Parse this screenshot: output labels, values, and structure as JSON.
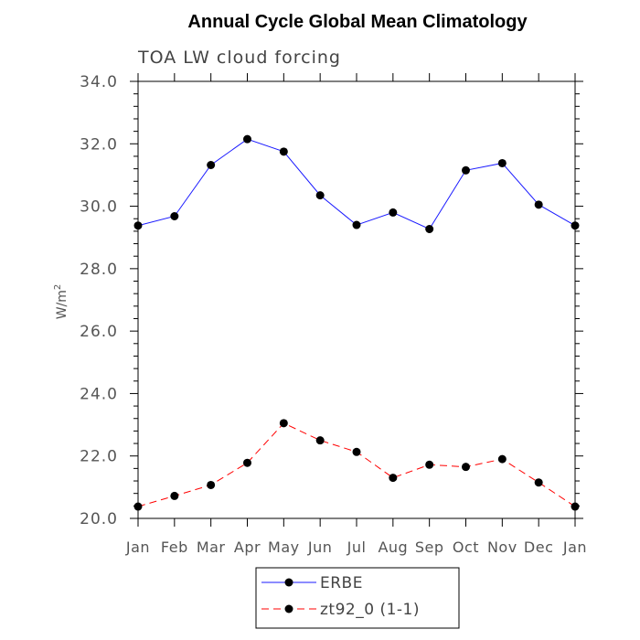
{
  "chart_data": {
    "type": "line",
    "title": "Annual Cycle Global Mean Climatology",
    "subtitle": "TOA LW cloud forcing",
    "xlabel": "",
    "ylabel": "W/m",
    "ylabel_sup": "2",
    "categories": [
      "Jan",
      "Feb",
      "Mar",
      "Apr",
      "May",
      "Jun",
      "Jul",
      "Aug",
      "Sep",
      "Oct",
      "Nov",
      "Dec",
      "Jan"
    ],
    "ylim": [
      20.0,
      34.0
    ],
    "yticks": [
      "20.0",
      "22.0",
      "24.0",
      "26.0",
      "28.0",
      "30.0",
      "32.0",
      "34.0"
    ],
    "legend_position": "bottom-center",
    "series": [
      {
        "name": "ERBE",
        "color": "#1a1aff",
        "dash": "solid",
        "values": [
          29.38,
          29.68,
          31.32,
          32.15,
          31.75,
          30.35,
          29.4,
          29.8,
          29.27,
          31.15,
          31.38,
          30.05,
          29.38
        ]
      },
      {
        "name": "zt92_0 (1-1)",
        "color": "#ff0000",
        "dash": "dashed",
        "values": [
          20.38,
          20.72,
          21.07,
          21.78,
          23.05,
          22.5,
          22.13,
          21.3,
          21.72,
          21.65,
          21.9,
          21.15,
          20.38
        ]
      }
    ]
  }
}
